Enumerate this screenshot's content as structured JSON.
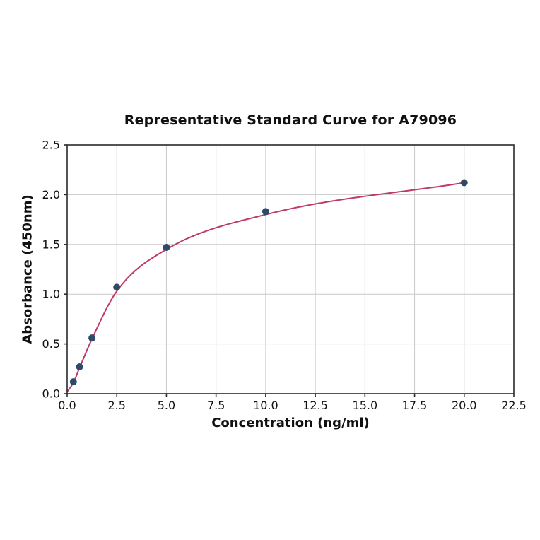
{
  "chart_data": {
    "type": "scatter",
    "title": "Representative Standard Curve for A79096",
    "xlabel": "Concentration (ng/ml)",
    "ylabel": "Absorbance (450nm)",
    "xlim": [
      0,
      22.5
    ],
    "ylim": [
      0,
      2.5
    ],
    "grid": true,
    "legend": false,
    "xticks": [
      0,
      2.5,
      5,
      7.5,
      10,
      12.5,
      15,
      17.5,
      20,
      22.5
    ],
    "xtick_labels": [
      "0.0",
      "2.5",
      "5.0",
      "7.5",
      "10.0",
      "12.5",
      "15.0",
      "17.5",
      "20.0",
      "22.5"
    ],
    "yticks": [
      0,
      0.5,
      1,
      1.5,
      2,
      2.5
    ],
    "ytick_labels": [
      "0.0",
      "0.5",
      "1.0",
      "1.5",
      "2.0",
      "2.5"
    ],
    "points": {
      "x": [
        0.313,
        0.625,
        1.25,
        2.5,
        5,
        10,
        20
      ],
      "y": [
        0.12,
        0.27,
        0.56,
        1.07,
        1.47,
        1.83,
        2.12
      ]
    },
    "fit_curve_anchors": {
      "x": [
        0,
        0.313,
        0.625,
        1.25,
        2.5,
        5,
        10,
        20
      ],
      "y": [
        0.02,
        0.11,
        0.26,
        0.55,
        1.03,
        1.45,
        1.8,
        2.12
      ]
    },
    "colors": {
      "curve": "#bf3a68",
      "points": "#2d4a6a",
      "grid": "#c9c9c9",
      "spine": "#2a2a2a",
      "text": "#111111",
      "background": "#ffffff"
    }
  }
}
